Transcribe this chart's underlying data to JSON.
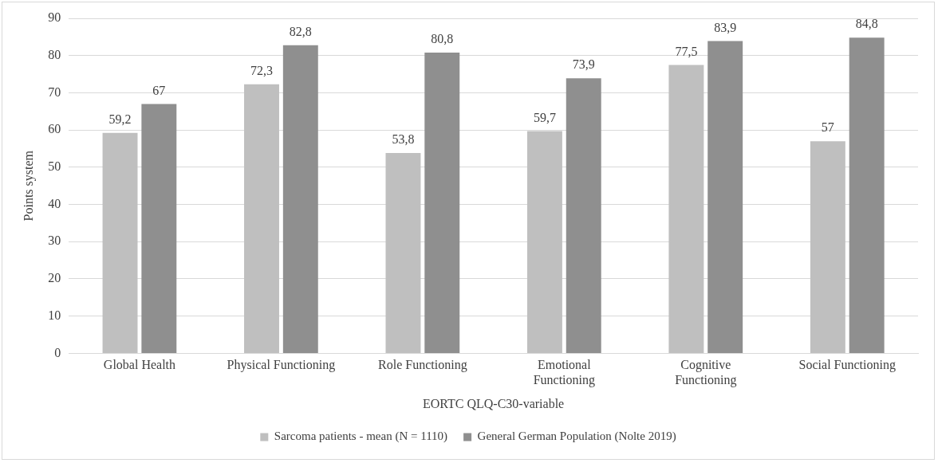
{
  "chart_data": {
    "type": "bar",
    "xlabel": "EORTC QLQ-C30-variable",
    "ylabel": "Points system",
    "categories": [
      "Global Health",
      "Physical Functioning",
      "Role Functioning",
      "Emotional Functioning",
      "Cognitive Functioning",
      "Social Functioning"
    ],
    "series": [
      {
        "name": "Sarcoma patients - mean (N = 1110)",
        "color": "#bfbfbf",
        "values": [
          59.2,
          72.3,
          53.8,
          59.7,
          77.5,
          57
        ],
        "value_labels": [
          "59,2",
          "72,3",
          "53,8",
          "59,7",
          "77,5",
          "57"
        ]
      },
      {
        "name": "General German Population (Nolte 2019)",
        "color": "#8f8f8f",
        "values": [
          67,
          82.8,
          80.8,
          73.9,
          83.9,
          84.8
        ],
        "value_labels": [
          "67",
          "82,8",
          "80,8",
          "73,9",
          "83,9",
          "84,8"
        ]
      }
    ],
    "ylim": [
      0,
      90
    ],
    "yticks": [
      0,
      10,
      20,
      30,
      40,
      50,
      60,
      70,
      80,
      90
    ],
    "grid": "y",
    "legend": "bottom"
  }
}
